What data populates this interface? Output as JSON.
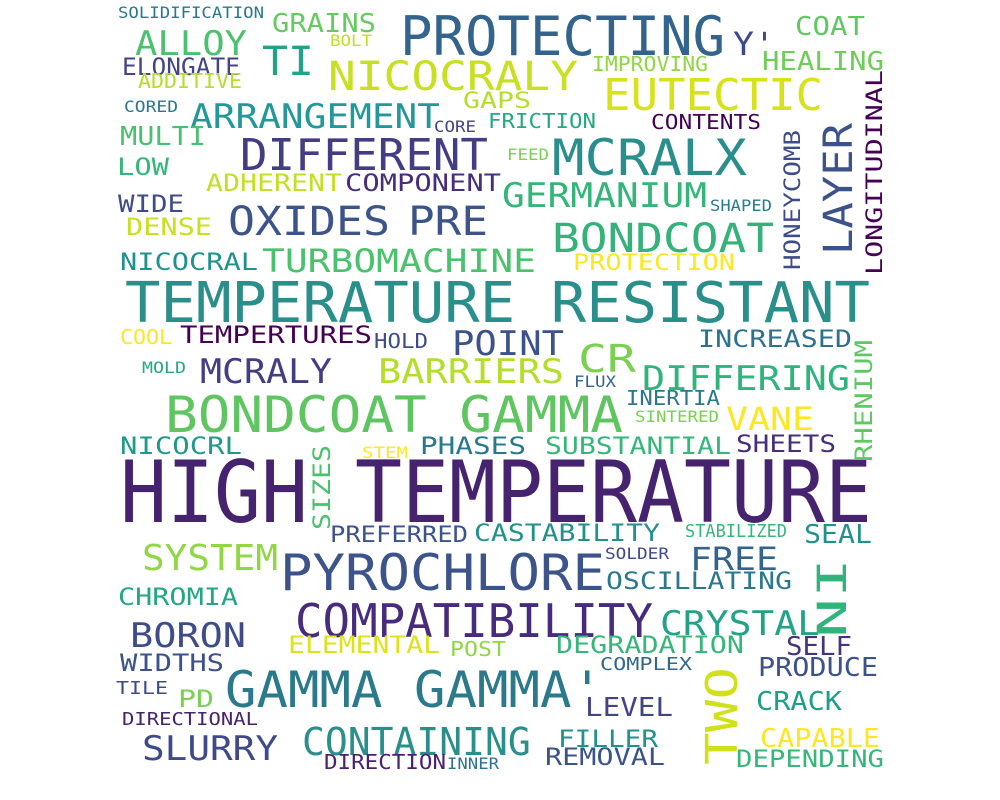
{
  "words": [
    {
      "text": "HIGH TEMPERATURE",
      "color": "#46236e"
    },
    {
      "text": "TEMPERATURE RESISTANT",
      "color": "#2a8f8b"
    },
    {
      "text": "BONDCOAT GAMMA",
      "color": "#5fc560"
    },
    {
      "text": "GAMMA GAMMA'",
      "color": "#2b7a8c"
    },
    {
      "text": "PYROCHLORE",
      "color": "#3c5489"
    },
    {
      "text": "COMPATIBILITY",
      "color": "#472b7c"
    },
    {
      "text": "PROTECTING",
      "color": "#32648d"
    },
    {
      "text": "MCRALX",
      "color": "#2a8f8b"
    },
    {
      "text": "NICOCRALY",
      "color": "#c8e020"
    },
    {
      "text": "DIFFERENT",
      "color": "#433d84"
    },
    {
      "text": "EUTECTIC",
      "color": "#d7e219"
    },
    {
      "text": "OXIDES",
      "color": "#3c5489"
    },
    {
      "text": "PRE",
      "color": "#3c5489"
    },
    {
      "text": "BONDCOAT",
      "color": "#34b279"
    },
    {
      "text": "LAYER",
      "color": "#3b528b"
    },
    {
      "text": "ARRANGEMENT",
      "color": "#23989b"
    },
    {
      "text": "TI",
      "color": "#20a386"
    },
    {
      "text": "ALLOY",
      "color": "#4ac16d"
    },
    {
      "text": "GERMANIUM",
      "color": "#34b679"
    },
    {
      "text": "TURBOMACHINE",
      "color": "#4ac16d"
    },
    {
      "text": "POINT",
      "color": "#3b528b"
    },
    {
      "text": "CR",
      "color": "#7ad151"
    },
    {
      "text": "DIFFERING",
      "color": "#2fb47c"
    },
    {
      "text": "MCRALY",
      "color": "#433d84"
    },
    {
      "text": "BARRIERS",
      "color": "#b5de2b"
    },
    {
      "text": "CRYSTAL",
      "color": "#20a386"
    },
    {
      "text": "CONTAINING",
      "color": "#2a8f8b"
    },
    {
      "text": "SLURRY",
      "color": "#3f4a8a"
    },
    {
      "text": "SYSTEM",
      "color": "#8fd744"
    },
    {
      "text": "BORON",
      "color": "#3e4c8a"
    },
    {
      "text": "TWO",
      "color": "#d0e11c"
    },
    {
      "text": "NI",
      "color": "#2fb47c"
    },
    {
      "text": "FREE",
      "color": "#32648d"
    },
    {
      "text": "VANE",
      "color": "#fde725"
    },
    {
      "text": "Y'",
      "color": "#3e4989"
    },
    {
      "text": "COAT",
      "color": "#5ec962"
    },
    {
      "text": "HEALING",
      "color": "#6ece58"
    },
    {
      "text": "GRAINS",
      "color": "#65cb5e"
    },
    {
      "text": "ELONGATE",
      "color": "#414487"
    },
    {
      "text": "GAPS",
      "color": "#b5de2b"
    },
    {
      "text": "FRICTION",
      "color": "#23a983"
    },
    {
      "text": "CONTENTS",
      "color": "#440154"
    },
    {
      "text": "COMPONENT",
      "color": "#472d7b"
    },
    {
      "text": "ADHERENT",
      "color": "#c2df23"
    },
    {
      "text": "MULTI",
      "color": "#48c16e"
    },
    {
      "text": "LOW",
      "color": "#35b779"
    },
    {
      "text": "WIDE",
      "color": "#3e4c8a"
    },
    {
      "text": "DENSE",
      "color": "#c8e020"
    },
    {
      "text": "NICOCRAL",
      "color": "#21918c"
    },
    {
      "text": "PROTECTION",
      "color": "#fde725"
    },
    {
      "text": "HONEYCOMB",
      "color": "#3e4c8a"
    },
    {
      "text": "LONGITUDINAL",
      "color": "#440154"
    },
    {
      "text": "SHAPED",
      "color": "#2a7b8e"
    },
    {
      "text": "TEMPERTURES",
      "color": "#440154"
    },
    {
      "text": "HOLD",
      "color": "#3e4c8a"
    },
    {
      "text": "INCREASED",
      "color": "#2c728e"
    },
    {
      "text": "COOL",
      "color": "#fde725"
    },
    {
      "text": "MOLD",
      "color": "#23a983"
    },
    {
      "text": "FLUX",
      "color": "#33638d"
    },
    {
      "text": "INERTIA",
      "color": "#2a788e"
    },
    {
      "text": "SINTERED",
      "color": "#7ad151"
    },
    {
      "text": "RHENIUM",
      "color": "#5ec962"
    },
    {
      "text": "NICOCRL",
      "color": "#1f9a8a"
    },
    {
      "text": "STEM",
      "color": "#fde725"
    },
    {
      "text": "PHASES",
      "color": "#2a788e"
    },
    {
      "text": "SUBSTANTIAL",
      "color": "#35b779"
    },
    {
      "text": "SHEETS",
      "color": "#472d7b"
    },
    {
      "text": "SIZES",
      "color": "#4ac16d"
    },
    {
      "text": "PREFERRED",
      "color": "#3b528b"
    },
    {
      "text": "CASTABILITY",
      "color": "#21918c"
    },
    {
      "text": "STABILIZED",
      "color": "#35b779"
    },
    {
      "text": "SEAL",
      "color": "#21918c"
    },
    {
      "text": "SOLDER",
      "color": "#3e4989"
    },
    {
      "text": "OSCILLATING",
      "color": "#2a788e"
    },
    {
      "text": "CHROMIA",
      "color": "#22a785"
    },
    {
      "text": "ELEMENTAL",
      "color": "#dde318"
    },
    {
      "text": "POST",
      "color": "#90d743"
    },
    {
      "text": "DEGRADATION",
      "color": "#35b779"
    },
    {
      "text": "SELF",
      "color": "#46337e"
    },
    {
      "text": "WIDTHS",
      "color": "#3b528b"
    },
    {
      "text": "COMPLEX",
      "color": "#31688e"
    },
    {
      "text": "PRODUCE",
      "color": "#3b528b"
    },
    {
      "text": "TILE",
      "color": "#3e4c8a"
    },
    {
      "text": "PD",
      "color": "#7ad151"
    },
    {
      "text": "LEVEL",
      "color": "#414487"
    },
    {
      "text": "CRACK",
      "color": "#1f9e89"
    },
    {
      "text": "DIRECTIONAL",
      "color": "#46236e"
    },
    {
      "text": "FILLER",
      "color": "#21918c"
    },
    {
      "text": "CAPABLE",
      "color": "#fde725"
    },
    {
      "text": "DIRECTION",
      "color": "#482173"
    },
    {
      "text": "INNER",
      "color": "#2c728e"
    },
    {
      "text": "REMOVAL",
      "color": "#3b528b"
    },
    {
      "text": "DEPENDING",
      "color": "#35b779"
    },
    {
      "text": "SOLIDIFICATION",
      "color": "#2a788e"
    },
    {
      "text": "BOLT",
      "color": "#c2df23"
    },
    {
      "text": "ADDITIVE",
      "color": "#b5de2b"
    },
    {
      "text": "IMPROVING",
      "color": "#8fd744"
    },
    {
      "text": "CORED",
      "color": "#2a788e"
    },
    {
      "text": "CORE",
      "color": "#414487"
    },
    {
      "text": "FEED",
      "color": "#7ad151"
    }
  ]
}
